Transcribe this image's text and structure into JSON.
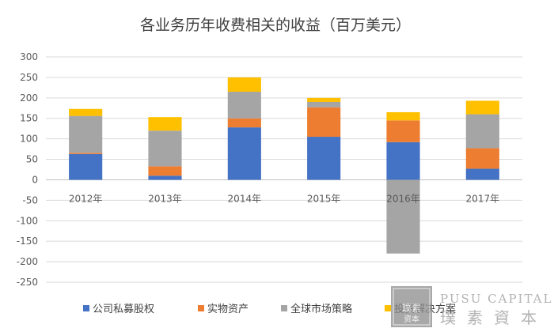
{
  "chart_data": {
    "type": "bar",
    "stacked": true,
    "title": "各业务历年收费相关的收益（百万美元）",
    "categories": [
      "2012年",
      "2013年",
      "2014年",
      "2015年",
      "2016年",
      "2017年"
    ],
    "series": [
      {
        "name": "公司私募股权",
        "color": "#4472c4",
        "values": [
          63,
          10,
          128,
          105,
          92,
          27
        ]
      },
      {
        "name": "实物资产",
        "color": "#ed7d31",
        "values": [
          3,
          23,
          22,
          72,
          53,
          50
        ]
      },
      {
        "name": "全球市场策略",
        "color": "#a5a5a5",
        "values": [
          90,
          87,
          65,
          13,
          -180,
          83
        ]
      },
      {
        "name": "投资解决方案",
        "color": "#ffc000",
        "values": [
          17,
          33,
          35,
          10,
          20,
          33
        ]
      }
    ],
    "ylim": [
      -250,
      300
    ],
    "yticks": [
      "300",
      "250",
      "200",
      "150",
      "100",
      "50",
      "0",
      "-50",
      "-100",
      "-150",
      "-200",
      "-250"
    ],
    "grid": true,
    "legend_position": "bottom"
  },
  "watermark": {
    "seal_text": "璞素资本",
    "latin": "PUSU CAPITAL",
    "chinese": "璞素資本"
  }
}
